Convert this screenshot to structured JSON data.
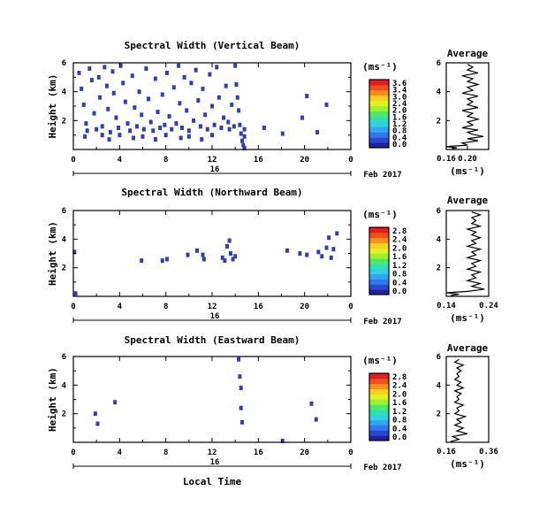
{
  "common": {
    "y_label": "Height (km)",
    "x_label": "Local Time",
    "date_label": "Feb 2017",
    "day_label": "16",
    "x_ticks": [
      "0",
      "4",
      "8",
      "12",
      "16",
      "20",
      "0"
    ],
    "y_ticks": [
      "6",
      "4",
      "2"
    ],
    "unit_label": "(ms⁻¹)",
    "avg_title": "Average",
    "avg_xlabel": "(ms⁻¹)",
    "avg_y_ticks": [
      "6",
      "4",
      "2"
    ],
    "palette": [
      "#2020a0",
      "#2848d0",
      "#3078f0",
      "#30a8f0",
      "#30d0e0",
      "#30e0b0",
      "#50e860",
      "#a0f030",
      "#e0f020",
      "#f8d020",
      "#f89020",
      "#f05020",
      "#e02020"
    ]
  },
  "chart_data": [
    {
      "type": "heatmap",
      "title": "Spectral Width (Vertical Beam)",
      "xlim": [
        0,
        24
      ],
      "ylim": [
        0,
        6
      ],
      "cell_color": "#2e3fb8",
      "colorbar_ticks": [
        "3.6",
        "3.4",
        "3.0",
        "2.4",
        "2.0",
        "1.6",
        "1.2",
        "0.8",
        "0.4",
        "0.0"
      ],
      "points": [
        [
          0.5,
          5.3
        ],
        [
          0.7,
          4.2
        ],
        [
          0.9,
          3.1
        ],
        [
          1.1,
          1.8
        ],
        [
          1.2,
          1.3
        ],
        [
          1.4,
          5.6
        ],
        [
          1.6,
          4.8
        ],
        [
          1.8,
          2.5
        ],
        [
          2.0,
          1.4
        ],
        [
          2.2,
          5.0
        ],
        [
          2.3,
          3.6
        ],
        [
          2.5,
          1.6
        ],
        [
          2.7,
          5.7
        ],
        [
          2.9,
          4.4
        ],
        [
          3.0,
          2.8
        ],
        [
          3.2,
          1.2
        ],
        [
          3.4,
          5.4
        ],
        [
          3.5,
          3.9
        ],
        [
          3.7,
          2.2
        ],
        [
          3.9,
          1.5
        ],
        [
          4.1,
          5.8
        ],
        [
          4.3,
          4.6
        ],
        [
          4.5,
          3.3
        ],
        [
          4.7,
          1.8
        ],
        [
          4.9,
          1.3
        ],
        [
          5.1,
          5.1
        ],
        [
          5.3,
          2.9
        ],
        [
          5.5,
          1.6
        ],
        [
          5.7,
          4.0
        ],
        [
          5.9,
          2.4
        ],
        [
          6.1,
          1.4
        ],
        [
          6.3,
          5.6
        ],
        [
          6.5,
          3.5
        ],
        [
          6.7,
          1.9
        ],
        [
          6.9,
          1.3
        ],
        [
          7.1,
          4.9
        ],
        [
          7.3,
          2.6
        ],
        [
          7.5,
          1.5
        ],
        [
          7.7,
          3.8
        ],
        [
          7.9,
          1.7
        ],
        [
          8.1,
          5.3
        ],
        [
          8.3,
          2.3
        ],
        [
          8.5,
          1.4
        ],
        [
          8.7,
          4.3
        ],
        [
          8.9,
          1.8
        ],
        [
          9.1,
          5.8
        ],
        [
          9.2,
          3.2
        ],
        [
          9.4,
          1.5
        ],
        [
          9.6,
          5.0
        ],
        [
          9.8,
          2.7
        ],
        [
          10.0,
          1.3
        ],
        [
          10.2,
          4.6
        ],
        [
          10.4,
          2.0
        ],
        [
          10.6,
          5.5
        ],
        [
          10.8,
          3.4
        ],
        [
          11.0,
          1.6
        ],
        [
          11.2,
          4.2
        ],
        [
          11.4,
          2.4
        ],
        [
          11.6,
          1.4
        ],
        [
          11.8,
          5.2
        ],
        [
          12.0,
          3.0
        ],
        [
          12.2,
          1.7
        ],
        [
          12.4,
          5.7
        ],
        [
          12.6,
          3.6
        ],
        [
          12.8,
          1.5
        ],
        [
          13.0,
          2.2
        ],
        [
          13.2,
          4.4
        ],
        [
          13.4,
          1.9
        ],
        [
          13.5,
          1.4
        ],
        [
          13.7,
          3.1
        ],
        [
          13.9,
          1.6
        ],
        [
          14.0,
          5.8
        ],
        [
          14.1,
          4.5
        ],
        [
          14.2,
          3.6
        ],
        [
          14.3,
          2.7
        ],
        [
          14.4,
          1.7
        ],
        [
          14.5,
          1.1
        ],
        [
          14.6,
          0.6
        ],
        [
          14.7,
          0.3
        ],
        [
          14.8,
          1.4
        ],
        [
          14.8,
          0.9
        ],
        [
          14.8,
          0.1
        ],
        [
          1.0,
          0.9
        ],
        [
          2.5,
          1.0
        ],
        [
          4.0,
          1.0
        ],
        [
          6.0,
          0.9
        ],
        [
          8.0,
          1.0
        ],
        [
          10.0,
          0.9
        ],
        [
          12.0,
          1.0
        ],
        [
          16.5,
          1.5
        ],
        [
          18.1,
          1.1
        ],
        [
          19.8,
          2.2
        ],
        [
          20.2,
          3.7
        ],
        [
          21.1,
          1.2
        ],
        [
          21.9,
          3.1
        ],
        [
          3.1,
          0.7
        ],
        [
          7.1,
          0.7
        ],
        [
          11.1,
          0.7
        ],
        [
          5.2,
          0.8
        ],
        [
          9.3,
          0.8
        ]
      ],
      "average": {
        "xlim": [
          0.16,
          0.24
        ],
        "xticks": [
          "0.16",
          "0.20"
        ],
        "profile": [
          [
            0.17,
            0.05
          ],
          [
            0.18,
            0.12
          ],
          [
            0.16,
            0.2
          ],
          [
            0.2,
            0.3
          ],
          [
            0.19,
            0.45
          ],
          [
            0.22,
            0.6
          ],
          [
            0.2,
            0.75
          ],
          [
            0.23,
            0.9
          ],
          [
            0.21,
            1.05
          ],
          [
            0.2,
            1.2
          ],
          [
            0.22,
            1.35
          ],
          [
            0.19,
            1.5
          ],
          [
            0.21,
            1.7
          ],
          [
            0.2,
            1.9
          ],
          [
            0.22,
            2.1
          ],
          [
            0.2,
            2.3
          ],
          [
            0.21,
            2.5
          ],
          [
            0.19,
            2.7
          ],
          [
            0.22,
            2.9
          ],
          [
            0.2,
            3.1
          ],
          [
            0.21,
            3.3
          ],
          [
            0.2,
            3.5
          ],
          [
            0.22,
            3.7
          ],
          [
            0.19,
            3.9
          ],
          [
            0.21,
            4.1
          ],
          [
            0.2,
            4.3
          ],
          [
            0.22,
            4.5
          ],
          [
            0.2,
            4.7
          ],
          [
            0.21,
            4.9
          ],
          [
            0.19,
            5.1
          ],
          [
            0.22,
            5.3
          ],
          [
            0.2,
            5.5
          ],
          [
            0.21,
            5.7
          ],
          [
            0.2,
            5.9
          ]
        ]
      }
    },
    {
      "type": "heatmap",
      "title": "Spectral Width (Northward Beam)",
      "xlim": [
        0,
        24
      ],
      "ylim": [
        0,
        6
      ],
      "cell_color": "#2e3fb8",
      "colorbar_ticks": [
        "2.8",
        "2.4",
        "2.0",
        "1.6",
        "1.2",
        "0.8",
        "0.4",
        "0.0"
      ],
      "points": [
        [
          0.1,
          3.1
        ],
        [
          5.9,
          2.5
        ],
        [
          7.7,
          2.5
        ],
        [
          8.1,
          2.6
        ],
        [
          9.9,
          2.9
        ],
        [
          10.7,
          3.2
        ],
        [
          11.2,
          2.9
        ],
        [
          11.3,
          2.6
        ],
        [
          12.9,
          2.7
        ],
        [
          13.1,
          2.5
        ],
        [
          13.3,
          3.5
        ],
        [
          13.5,
          3.9
        ],
        [
          13.6,
          3.0
        ],
        [
          13.8,
          2.6
        ],
        [
          14.0,
          2.8
        ],
        [
          18.5,
          3.2
        ],
        [
          19.6,
          3.0
        ],
        [
          20.2,
          2.9
        ],
        [
          21.2,
          3.1
        ],
        [
          21.5,
          2.8
        ],
        [
          21.9,
          3.4
        ],
        [
          22.1,
          4.1
        ],
        [
          22.3,
          2.7
        ],
        [
          22.5,
          3.3
        ],
        [
          22.8,
          4.4
        ],
        [
          0.2,
          0.2
        ]
      ],
      "average": {
        "xlim": [
          0.14,
          0.24
        ],
        "xticks": [
          "0.14",
          "0.24"
        ],
        "profile": [
          [
            0.15,
            0.05
          ],
          [
            0.17,
            0.15
          ],
          [
            0.14,
            0.25
          ],
          [
            0.19,
            0.35
          ],
          [
            0.23,
            0.5
          ],
          [
            0.2,
            0.7
          ],
          [
            0.22,
            0.9
          ],
          [
            0.19,
            1.1
          ],
          [
            0.21,
            1.3
          ],
          [
            0.2,
            1.5
          ],
          [
            0.22,
            1.7
          ],
          [
            0.19,
            1.9
          ],
          [
            0.21,
            2.1
          ],
          [
            0.2,
            2.3
          ],
          [
            0.22,
            2.5
          ],
          [
            0.19,
            2.7
          ],
          [
            0.21,
            2.9
          ],
          [
            0.2,
            3.1
          ],
          [
            0.22,
            3.3
          ],
          [
            0.19,
            3.5
          ],
          [
            0.21,
            3.7
          ],
          [
            0.2,
            3.9
          ],
          [
            0.22,
            4.1
          ],
          [
            0.2,
            4.3
          ],
          [
            0.21,
            4.5
          ],
          [
            0.19,
            4.7
          ],
          [
            0.22,
            4.9
          ],
          [
            0.2,
            5.1
          ],
          [
            0.21,
            5.3
          ],
          [
            0.2,
            5.5
          ],
          [
            0.22,
            5.7
          ],
          [
            0.2,
            5.9
          ]
        ]
      }
    },
    {
      "type": "heatmap",
      "title": "Spectral Width (Eastward Beam)",
      "xlim": [
        0,
        24
      ],
      "ylim": [
        0,
        6
      ],
      "cell_color": "#2e3fb8",
      "colorbar_ticks": [
        "2.8",
        "2.4",
        "2.0",
        "1.6",
        "1.2",
        "0.8",
        "0.4",
        "0.0"
      ],
      "points": [
        [
          1.9,
          2.0
        ],
        [
          2.1,
          1.3
        ],
        [
          3.6,
          2.8
        ],
        [
          14.3,
          5.8
        ],
        [
          14.4,
          4.6
        ],
        [
          14.5,
          3.8
        ],
        [
          14.5,
          2.4
        ],
        [
          14.6,
          1.4
        ],
        [
          18.1,
          0.1
        ],
        [
          20.6,
          2.7
        ],
        [
          21.0,
          1.6
        ]
      ],
      "average": {
        "xlim": [
          0.16,
          0.36
        ],
        "xticks": [
          "0.16",
          "0.36"
        ],
        "profile": [
          [
            0.18,
            0.05
          ],
          [
            0.22,
            0.2
          ],
          [
            0.19,
            0.4
          ],
          [
            0.26,
            0.6
          ],
          [
            0.21,
            0.8
          ],
          [
            0.24,
            1.0
          ],
          [
            0.2,
            1.2
          ],
          [
            0.23,
            1.4
          ],
          [
            0.21,
            1.6
          ],
          [
            0.25,
            1.8
          ],
          [
            0.2,
            2.0
          ],
          [
            0.22,
            2.2
          ],
          [
            0.21,
            2.4
          ],
          [
            0.24,
            2.6
          ],
          [
            0.2,
            2.8
          ],
          [
            0.22,
            3.0
          ],
          [
            0.21,
            3.2
          ],
          [
            0.23,
            3.4
          ],
          [
            0.2,
            3.6
          ],
          [
            0.24,
            3.8
          ],
          [
            0.21,
            4.0
          ],
          [
            0.23,
            4.2
          ],
          [
            0.2,
            4.4
          ],
          [
            0.22,
            4.6
          ],
          [
            0.21,
            4.8
          ],
          [
            0.23,
            5.0
          ],
          [
            0.21,
            5.2
          ],
          [
            0.24,
            5.4
          ],
          [
            0.2,
            5.6
          ],
          [
            0.22,
            5.8
          ]
        ]
      }
    }
  ]
}
